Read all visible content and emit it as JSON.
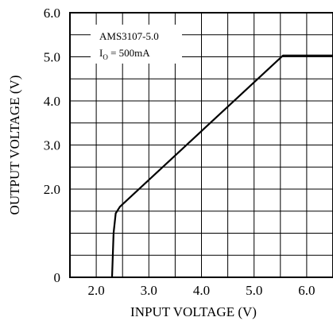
{
  "chart_data": {
    "type": "line",
    "xlabel": "INPUT VOLTAGE (V)",
    "ylabel": "OUTPUT VOLTAGE (V)",
    "xlim": [
      1.5,
      6.5
    ],
    "ylim": [
      0,
      6.0
    ],
    "x_ticks": [
      "2.0",
      "3.0",
      "4.0",
      "5.0",
      "6.0"
    ],
    "x_tick_values": [
      2.0,
      3.0,
      4.0,
      5.0,
      6.0
    ],
    "y_ticks": [
      "0",
      "2.0",
      "3.0",
      "4.0",
      "5.0",
      "6.0"
    ],
    "y_tick_values": [
      0,
      2.0,
      3.0,
      4.0,
      5.0,
      6.0
    ],
    "grid": true,
    "legend_placement": "top-left",
    "annotation": {
      "line1": "AMS3107-5.0",
      "line2_prefix": "I",
      "line2_sub": "O",
      "line2_suffix": " = 500mA"
    },
    "series": [
      {
        "x": [
          2.3,
          2.33,
          2.37,
          2.45,
          5.55,
          6.5
        ],
        "y": [
          0,
          1.0,
          1.45,
          1.6,
          5.03,
          5.03
        ]
      }
    ]
  }
}
